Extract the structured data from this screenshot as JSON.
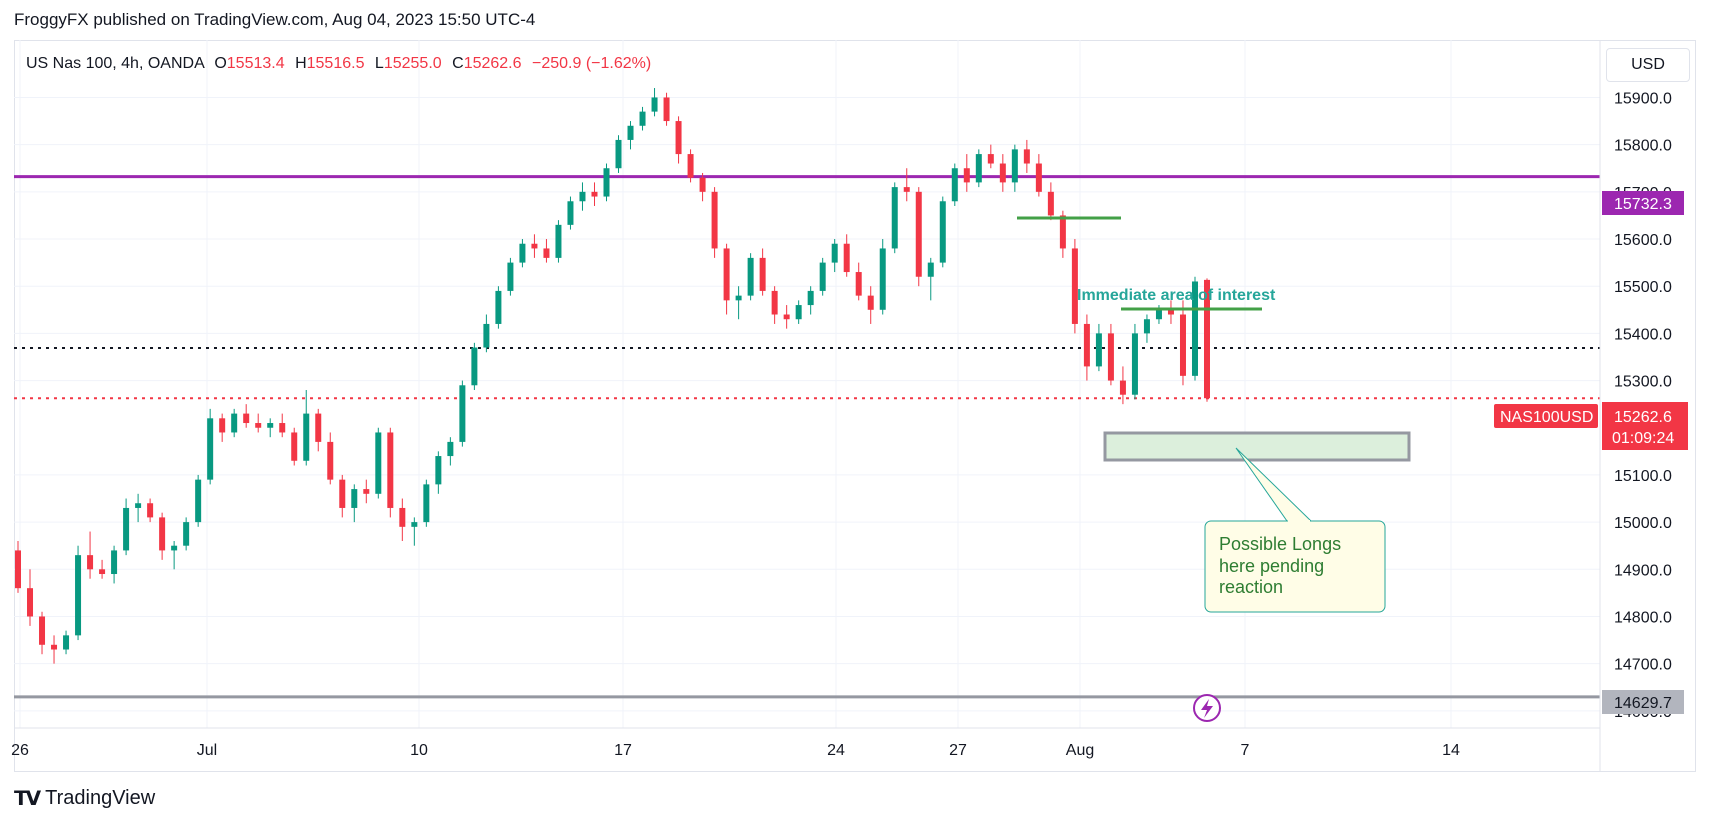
{
  "header": {
    "published": "FroggyFX published on TradingView.com, Aug 04, 2023 15:50 UTC-4"
  },
  "legend": {
    "symbol": "US Nas 100, 4h, OANDA",
    "o_label": "O",
    "o": "15513.4",
    "h_label": "H",
    "h": "15516.5",
    "l_label": "L",
    "l": "15255.0",
    "c_label": "C",
    "c": "15262.6",
    "change": "−250.9 (−1.62%)"
  },
  "currency": "USD",
  "footer": {
    "brand": "TradingView"
  },
  "annotations": {
    "area_label": "Immediate area of interest",
    "callout_lines": [
      "Possible Longs",
      "here pending",
      "reaction"
    ],
    "purple_level": "15732.3",
    "gray_level": "14629.7",
    "symbol_tag": "NAS100USD",
    "price_tag": "15262.6",
    "countdown": "01:09:24"
  },
  "chart_data": {
    "type": "candlestick",
    "title": "US Nas 100, 4h, OANDA",
    "ylim": [
      14570,
      15990
    ],
    "y_ticks": [
      15900,
      15800,
      15700,
      15600,
      15500,
      15400,
      15300,
      15100,
      15000,
      14900,
      14800,
      14700,
      14600
    ],
    "x_ticks": [
      "26",
      "Jul",
      "10",
      "17",
      "24",
      "27",
      "Aug",
      "7",
      "14"
    ],
    "horizontal_lines": [
      {
        "name": "purple-resistance",
        "value": 15732.3,
        "color": "#9c27b0"
      },
      {
        "name": "dotted-black",
        "value": 15369,
        "color": "#131722"
      },
      {
        "name": "current-price",
        "value": 15262.6,
        "color": "#f23645"
      },
      {
        "name": "gray-support",
        "value": 14629.7,
        "color": "#9598a1"
      }
    ],
    "colors": {
      "up": "#089981",
      "down": "#f23645"
    },
    "candles": [
      [
        14940,
        14960,
        14850,
        14860
      ],
      [
        14860,
        14900,
        14780,
        14800
      ],
      [
        14800,
        14810,
        14720,
        14740
      ],
      [
        14740,
        14760,
        14700,
        14730
      ],
      [
        14730,
        14770,
        14720,
        14760
      ],
      [
        14760,
        14950,
        14750,
        14930
      ],
      [
        14930,
        14980,
        14880,
        14900
      ],
      [
        14900,
        14920,
        14880,
        14890
      ],
      [
        14890,
        14950,
        14870,
        14940
      ],
      [
        14940,
        15050,
        14930,
        15030
      ],
      [
        15030,
        15060,
        15000,
        15040
      ],
      [
        15040,
        15050,
        15000,
        15010
      ],
      [
        15010,
        15020,
        14920,
        14940
      ],
      [
        14940,
        14960,
        14900,
        14950
      ],
      [
        14950,
        15010,
        14940,
        15000
      ],
      [
        15000,
        15100,
        14990,
        15090
      ],
      [
        15090,
        15240,
        15080,
        15220
      ],
      [
        15220,
        15230,
        15170,
        15190
      ],
      [
        15190,
        15240,
        15180,
        15230
      ],
      [
        15230,
        15250,
        15200,
        15210
      ],
      [
        15210,
        15230,
        15190,
        15200
      ],
      [
        15200,
        15220,
        15180,
        15210
      ],
      [
        15210,
        15230,
        15180,
        15190
      ],
      [
        15190,
        15200,
        15120,
        15130
      ],
      [
        15130,
        15280,
        15120,
        15230
      ],
      [
        15230,
        15240,
        15150,
        15170
      ],
      [
        15170,
        15190,
        15080,
        15090
      ],
      [
        15090,
        15100,
        15010,
        15030
      ],
      [
        15030,
        15080,
        15000,
        15070
      ],
      [
        15070,
        15090,
        15040,
        15060
      ],
      [
        15060,
        15200,
        15050,
        15190
      ],
      [
        15190,
        15200,
        15010,
        15030
      ],
      [
        15030,
        15050,
        14960,
        14990
      ],
      [
        14990,
        15010,
        14950,
        15000
      ],
      [
        15000,
        15090,
        14990,
        15080
      ],
      [
        15080,
        15150,
        15060,
        15140
      ],
      [
        15140,
        15180,
        15120,
        15170
      ],
      [
        15170,
        15300,
        15160,
        15290
      ],
      [
        15290,
        15380,
        15280,
        15370
      ],
      [
        15370,
        15440,
        15360,
        15420
      ],
      [
        15420,
        15500,
        15410,
        15490
      ],
      [
        15490,
        15560,
        15480,
        15550
      ],
      [
        15550,
        15600,
        15540,
        15590
      ],
      [
        15590,
        15610,
        15560,
        15580
      ],
      [
        15580,
        15600,
        15550,
        15560
      ],
      [
        15560,
        15640,
        15550,
        15630
      ],
      [
        15630,
        15690,
        15620,
        15680
      ],
      [
        15680,
        15720,
        15660,
        15700
      ],
      [
        15700,
        15720,
        15670,
        15690
      ],
      [
        15690,
        15760,
        15680,
        15750
      ],
      [
        15750,
        15820,
        15740,
        15810
      ],
      [
        15810,
        15850,
        15790,
        15840
      ],
      [
        15840,
        15880,
        15830,
        15870
      ],
      [
        15870,
        15920,
        15860,
        15900
      ],
      [
        15900,
        15910,
        15840,
        15850
      ],
      [
        15850,
        15860,
        15760,
        15780
      ],
      [
        15780,
        15790,
        15720,
        15730
      ],
      [
        15730,
        15740,
        15680,
        15700
      ],
      [
        15700,
        15710,
        15560,
        15580
      ],
      [
        15580,
        15590,
        15440,
        15470
      ],
      [
        15470,
        15500,
        15430,
        15480
      ],
      [
        15480,
        15570,
        15470,
        15560
      ],
      [
        15560,
        15580,
        15480,
        15490
      ],
      [
        15490,
        15500,
        15420,
        15440
      ],
      [
        15440,
        15460,
        15410,
        15430
      ],
      [
        15430,
        15470,
        15420,
        15460
      ],
      [
        15460,
        15500,
        15440,
        15490
      ],
      [
        15490,
        15560,
        15480,
        15550
      ],
      [
        15550,
        15600,
        15530,
        15590
      ],
      [
        15590,
        15610,
        15520,
        15530
      ],
      [
        15530,
        15550,
        15470,
        15480
      ],
      [
        15480,
        15500,
        15420,
        15450
      ],
      [
        15450,
        15600,
        15440,
        15580
      ],
      [
        15580,
        15720,
        15570,
        15710
      ],
      [
        15710,
        15750,
        15680,
        15700
      ],
      [
        15700,
        15710,
        15500,
        15520
      ],
      [
        15520,
        15560,
        15470,
        15550
      ],
      [
        15550,
        15690,
        15540,
        15680
      ],
      [
        15680,
        15760,
        15670,
        15750
      ],
      [
        15750,
        15780,
        15700,
        15720
      ],
      [
        15720,
        15790,
        15710,
        15780
      ],
      [
        15780,
        15800,
        15750,
        15760
      ],
      [
        15760,
        15780,
        15700,
        15720
      ],
      [
        15720,
        15800,
        15700,
        15790
      ],
      [
        15790,
        15810,
        15740,
        15760
      ],
      [
        15760,
        15780,
        15690,
        15700
      ],
      [
        15700,
        15720,
        15640,
        15650
      ],
      [
        15650,
        15660,
        15560,
        15580
      ],
      [
        15580,
        15600,
        15400,
        15420
      ],
      [
        15420,
        15440,
        15300,
        15330
      ],
      [
        15330,
        15420,
        15320,
        15400
      ],
      [
        15400,
        15420,
        15290,
        15300
      ],
      [
        15300,
        15330,
        15250,
        15270
      ],
      [
        15270,
        15420,
        15260,
        15400
      ],
      [
        15400,
        15440,
        15380,
        15430
      ],
      [
        15430,
        15460,
        15420,
        15450
      ],
      [
        15450,
        15470,
        15420,
        15440
      ],
      [
        15440,
        15470,
        15290,
        15310
      ],
      [
        15310,
        15520,
        15300,
        15510
      ],
      [
        15513.4,
        15516.5,
        15255.0,
        15262.6
      ]
    ]
  }
}
